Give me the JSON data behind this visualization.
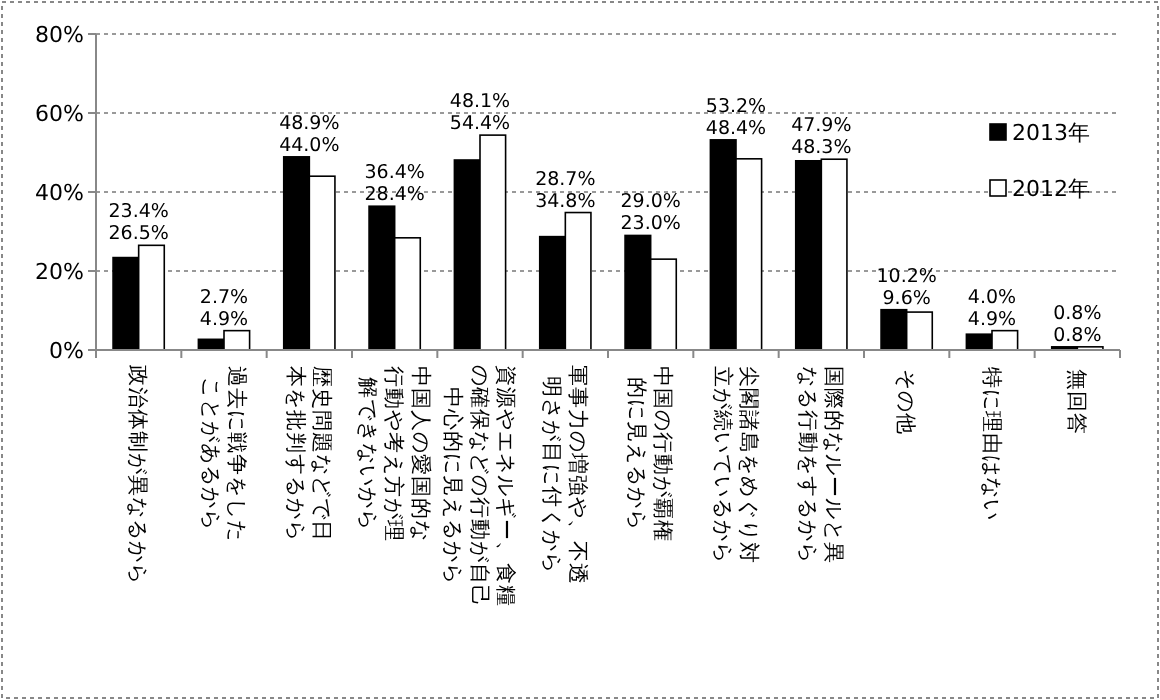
{
  "chart_data": {
    "type": "bar",
    "categories": [
      "政治体制が異なるから",
      "過去に戦争をしたことがあるから",
      "歴史問題などで日本を批判するから",
      "中国人の愛国的な行動や考え方が理解できないから",
      "資源やエネルギー、食糧の確保などの行動が自己中心的に見えるから",
      "軍事力の増強や、不透明さが目に付くから",
      "中国の行動が覇権的に見えるから",
      "尖閣諸島をめぐり対立が続いているから",
      "国際的なルールと異なる行動をするから",
      "その他",
      "特に理由はない",
      "無回答"
    ],
    "series": [
      {
        "name": "2013年",
        "color": "#000000",
        "values": [
          23.4,
          2.7,
          48.9,
          36.4,
          48.1,
          28.7,
          29.0,
          53.2,
          47.9,
          10.2,
          4.0,
          0.8
        ],
        "value_labels": [
          "23.4%",
          "2.7%",
          "48.9%",
          "36.4%",
          "48.1%",
          "28.7%",
          "29.0%",
          "53.2%",
          "47.9%",
          "10.2%",
          "4.0%",
          "0.8%"
        ]
      },
      {
        "name": "2012年",
        "color": "#ffffff",
        "values": [
          26.5,
          4.9,
          44.0,
          28.4,
          54.4,
          34.8,
          23.0,
          48.4,
          48.3,
          9.6,
          4.9,
          0.8
        ],
        "value_labels": [
          "26.5%",
          "4.9%",
          "44.0%",
          "28.4%",
          "54.4%",
          "34.8%",
          "23.0%",
          "48.4%",
          "48.3%",
          "9.6%",
          "4.9%",
          "0.8%"
        ]
      }
    ],
    "ylim": [
      0,
      80
    ],
    "yticks": [
      {
        "value": 0,
        "label": "0%"
      },
      {
        "value": 20,
        "label": "20%"
      },
      {
        "value": 40,
        "label": "40%"
      },
      {
        "value": 60,
        "label": "60%"
      },
      {
        "value": 80,
        "label": "80%"
      }
    ],
    "grid": "y",
    "legend": "right"
  }
}
